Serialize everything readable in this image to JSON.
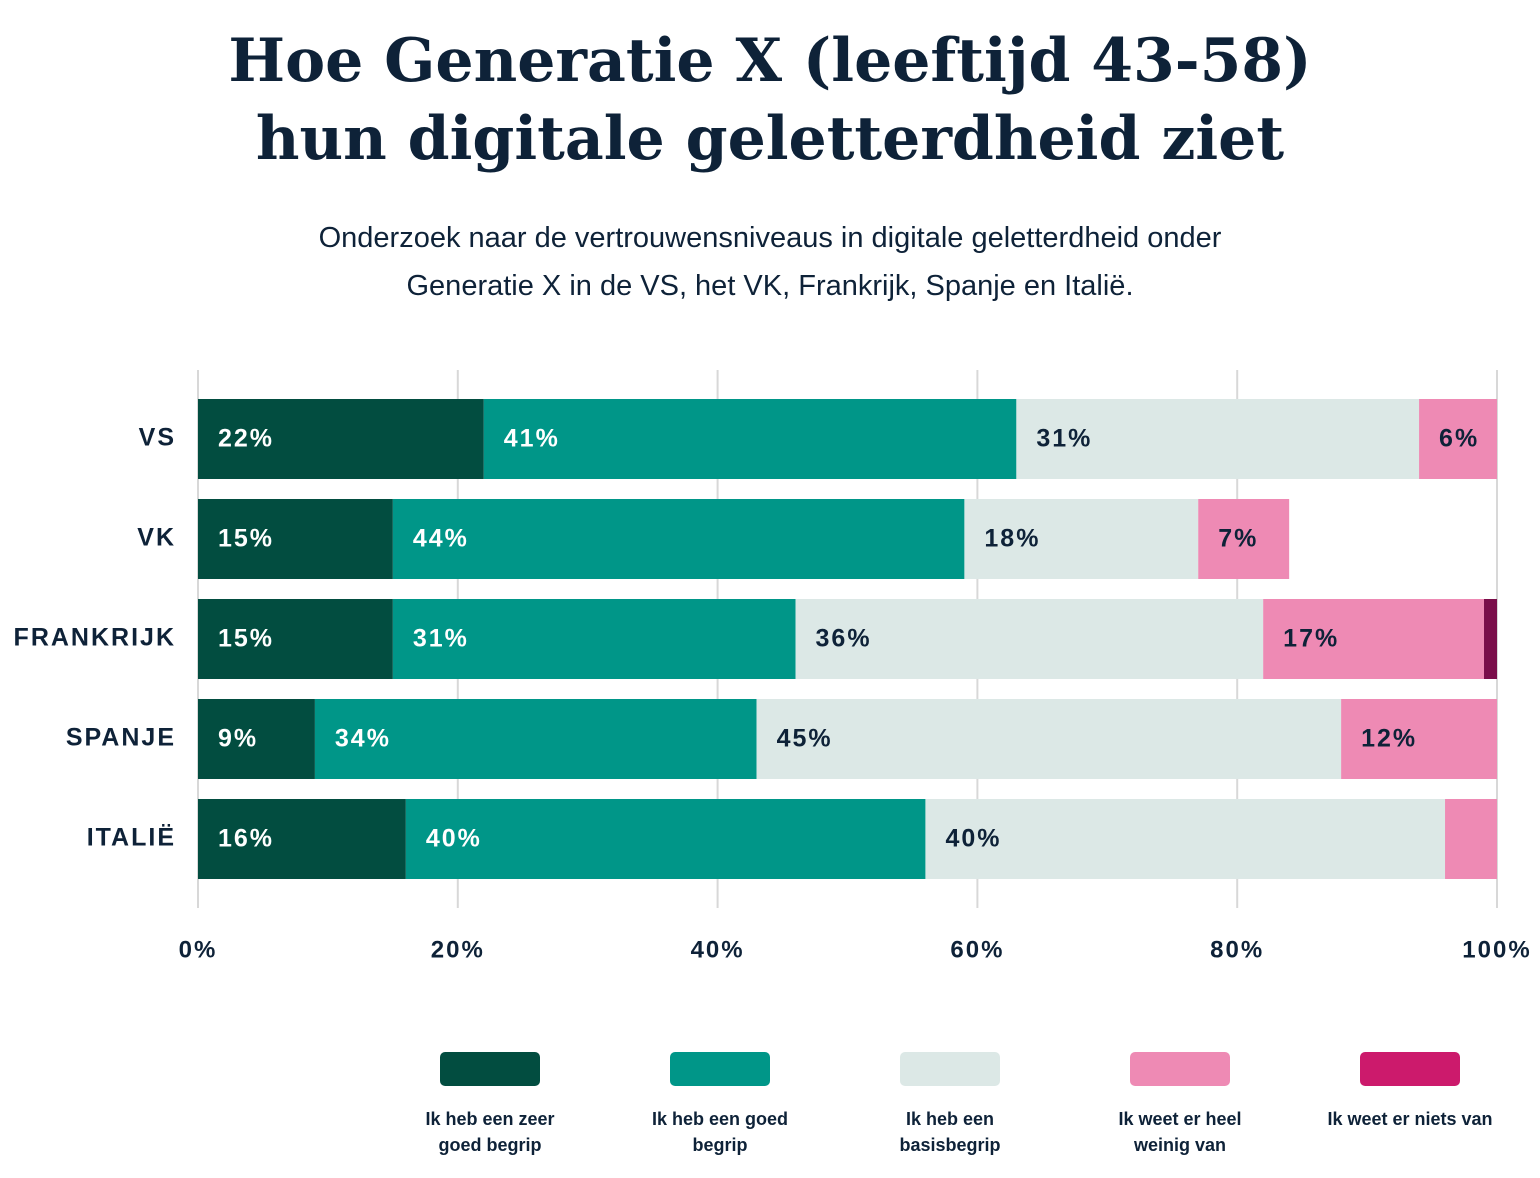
{
  "chart_data": {
    "type": "stacked-bar-horizontal",
    "title": "Hoe Generatie X (leeftijd 43-58) hun digitale geletterdheid ziet",
    "subtitle": "Onderzoek naar de vertrouwensniveaus in digitale geletterdheid onder Generatie X in de VS, het VK, Frankrijk, Spanje en Italië.",
    "categories": [
      "VS",
      "VK",
      "FRANKRIJK",
      "SPANJE",
      "ITALIË"
    ],
    "series": [
      {
        "name": "Ik heb een zeer goed begrip",
        "color": "#024d40",
        "values": [
          22,
          15,
          15,
          9,
          16
        ],
        "value_labels": [
          "22%",
          "15%",
          "15%",
          "9%",
          "16%"
        ]
      },
      {
        "name": "Ik heb een goed begrip",
        "color": "#009688",
        "values": [
          41,
          44,
          31,
          34,
          40
        ],
        "value_labels": [
          "41%",
          "44%",
          "31%",
          "34%",
          "40%"
        ]
      },
      {
        "name": "Ik heb een basisbegrip",
        "color": "#dce8e6",
        "values": [
          31,
          18,
          36,
          45,
          40
        ],
        "value_labels": [
          "31%",
          "18%",
          "36%",
          "45%",
          "40%"
        ]
      },
      {
        "name": "Ik weet er heel weinig van",
        "color": "#ee8ab4",
        "values": [
          6,
          7,
          17,
          12,
          4
        ],
        "value_labels": [
          "6%",
          "7%",
          "17%",
          "12%",
          null
        ]
      },
      {
        "name": "Ik weet er niets van",
        "color": "#cc1a6c",
        "values": [
          null,
          null,
          1,
          null,
          null
        ],
        "value_labels": [
          null,
          null,
          null,
          null,
          null
        ]
      }
    ],
    "xlim": [
      0,
      100
    ],
    "xticks": [
      {
        "value": 0,
        "label": "0%"
      },
      {
        "value": 20,
        "label": "20%"
      },
      {
        "value": 40,
        "label": "40%"
      },
      {
        "value": 60,
        "label": "60%"
      },
      {
        "value": 80,
        "label": "80%"
      },
      {
        "value": 100,
        "label": "100%"
      }
    ],
    "grid": true
  }
}
